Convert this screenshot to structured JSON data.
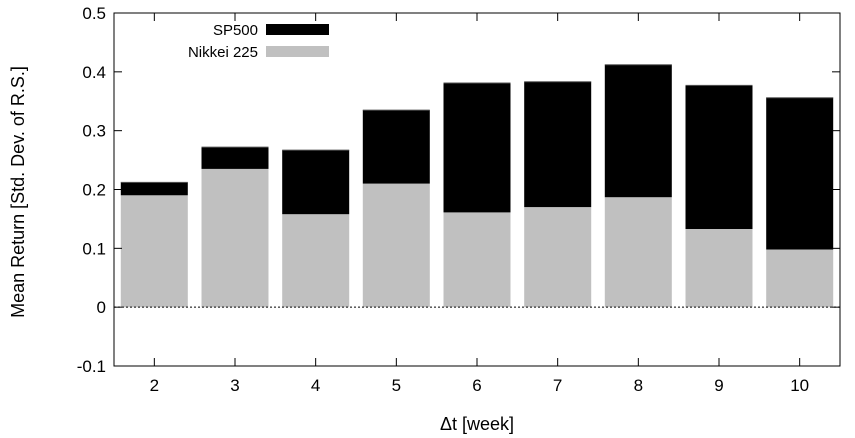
{
  "chart_data": {
    "type": "bar",
    "stacked": true,
    "categories": [
      "2",
      "3",
      "4",
      "5",
      "6",
      "7",
      "8",
      "9",
      "10"
    ],
    "series": [
      {
        "name": "Nikkei 225",
        "values": [
          0.19,
          0.235,
          0.158,
          0.21,
          0.161,
          0.17,
          0.187,
          0.133,
          0.098
        ],
        "color": "#c0c0c0"
      },
      {
        "name": "SP500",
        "values": [
          0.022,
          0.037,
          0.109,
          0.125,
          0.22,
          0.213,
          0.225,
          0.244,
          0.258
        ],
        "color": "#000000"
      }
    ],
    "xlabel": "Δt [week]",
    "ylabel": "Mean Return [Std. Dev. of R.S.]",
    "ylim": [
      -0.1,
      0.5
    ],
    "yticks": [
      "-0.1",
      "0",
      "0.1",
      "0.2",
      "0.3",
      "0.4",
      "0.5"
    ],
    "ytick_values": [
      -0.1,
      0,
      0.1,
      0.2,
      0.3,
      0.4,
      0.5
    ],
    "zero_line": "dotted",
    "grid": false,
    "legend_position": "top-left"
  }
}
